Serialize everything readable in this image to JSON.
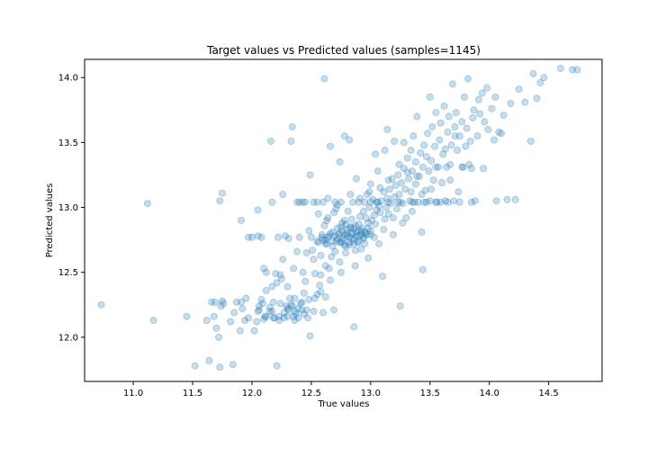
{
  "chart_data": {
    "type": "scatter",
    "title": "Target values vs Predicted values (samples=1145)",
    "xlabel": "True values",
    "ylabel": "Predicted values",
    "xlim": [
      10.59,
      14.95
    ],
    "ylim": [
      11.66,
      14.14
    ],
    "xticks": [
      11.0,
      11.5,
      12.0,
      12.5,
      13.0,
      13.5,
      14.0,
      14.5
    ],
    "yticks": [
      12.0,
      12.5,
      13.0,
      13.5,
      14.0
    ],
    "xtick_labels": [
      "11.0",
      "11.5",
      "12.0",
      "12.5",
      "13.0",
      "13.5",
      "14.0",
      "14.5"
    ],
    "ytick_labels": [
      "12.0",
      "12.5",
      "13.0",
      "13.5",
      "14.0"
    ],
    "grid": false,
    "marker_color": "#1f77b4",
    "marker_alpha": 0.25,
    "points": [
      [
        10.73,
        12.25
      ],
      [
        11.12,
        13.03
      ],
      [
        11.17,
        12.13
      ],
      [
        11.45,
        12.16
      ],
      [
        11.52,
        11.78
      ],
      [
        11.62,
        12.13
      ],
      [
        11.64,
        11.82
      ],
      [
        11.66,
        12.27
      ],
      [
        11.68,
        12.16
      ],
      [
        11.7,
        12.07
      ],
      [
        11.72,
        12.0
      ],
      [
        11.73,
        11.77
      ],
      [
        11.74,
        12.24
      ],
      [
        11.73,
        13.05
      ],
      [
        11.75,
        13.11
      ],
      [
        11.75,
        12.28
      ],
      [
        11.84,
        11.79
      ],
      [
        11.85,
        12.19
      ],
      [
        11.87,
        12.27
      ],
      [
        11.91,
        12.27
      ],
      [
        11.91,
        12.9
      ],
      [
        11.92,
        12.22
      ],
      [
        11.94,
        12.13
      ],
      [
        11.97,
        12.15
      ],
      [
        11.97,
        12.77
      ],
      [
        12.0,
        12.77
      ],
      [
        12.02,
        12.05
      ],
      [
        12.04,
        12.12
      ],
      [
        12.05,
        12.98
      ],
      [
        12.06,
        12.24
      ],
      [
        12.05,
        12.78
      ],
      [
        12.08,
        12.29
      ],
      [
        12.08,
        12.77
      ],
      [
        12.1,
        12.53
      ],
      [
        12.1,
        12.14
      ],
      [
        12.12,
        12.36
      ],
      [
        12.11,
        12.16
      ],
      [
        12.15,
        12.23
      ],
      [
        12.16,
        13.51
      ],
      [
        12.17,
        12.39
      ],
      [
        12.17,
        12.2
      ],
      [
        12.17,
        13.04
      ],
      [
        12.19,
        12.15
      ],
      [
        12.2,
        12.49
      ],
      [
        12.21,
        11.78
      ],
      [
        12.22,
        12.77
      ],
      [
        12.23,
        12.16
      ],
      [
        12.23,
        12.13
      ],
      [
        12.24,
        12.26
      ],
      [
        12.25,
        12.45
      ],
      [
        12.26,
        13.1
      ],
      [
        12.27,
        12.15
      ],
      [
        12.28,
        12.78
      ],
      [
        12.29,
        12.24
      ],
      [
        12.3,
        12.22
      ],
      [
        12.3,
        12.39
      ],
      [
        12.31,
        12.21
      ],
      [
        12.31,
        12.76
      ],
      [
        12.33,
        13.51
      ],
      [
        12.34,
        13.62
      ],
      [
        12.34,
        12.24
      ],
      [
        12.35,
        12.53
      ],
      [
        12.35,
        12.16
      ],
      [
        12.36,
        12.3
      ],
      [
        12.36,
        12.13
      ],
      [
        12.38,
        12.66
      ],
      [
        12.38,
        13.04
      ],
      [
        12.39,
        12.22
      ],
      [
        12.4,
        12.77
      ],
      [
        12.41,
        12.26
      ],
      [
        12.42,
        12.21
      ],
      [
        12.43,
        12.5
      ],
      [
        12.43,
        13.04
      ],
      [
        12.45,
        12.43
      ],
      [
        12.46,
        12.65
      ],
      [
        12.46,
        12.21
      ],
      [
        12.47,
        12.15
      ],
      [
        12.48,
        12.82
      ],
      [
        12.49,
        13.25
      ],
      [
        12.49,
        12.01
      ],
      [
        12.5,
        12.77
      ],
      [
        12.51,
        12.67
      ],
      [
        12.52,
        13.04
      ],
      [
        12.53,
        12.3
      ],
      [
        12.53,
        12.49
      ],
      [
        12.55,
        12.74
      ],
      [
        12.56,
        12.73
      ],
      [
        12.56,
        12.95
      ],
      [
        12.57,
        12.4
      ],
      [
        12.58,
        12.63
      ],
      [
        12.59,
        12.79
      ],
      [
        12.59,
        12.77
      ],
      [
        12.6,
        12.19
      ],
      [
        12.61,
        13.99
      ],
      [
        12.61,
        12.86
      ],
      [
        12.62,
        12.75
      ],
      [
        12.62,
        12.55
      ],
      [
        12.63,
        12.72
      ],
      [
        12.64,
        13.07
      ],
      [
        12.64,
        12.92
      ],
      [
        12.65,
        12.78
      ],
      [
        12.66,
        13.47
      ],
      [
        12.66,
        12.44
      ],
      [
        12.68,
        12.7
      ],
      [
        12.68,
        12.81
      ],
      [
        12.69,
        12.21
      ],
      [
        12.69,
        12.96
      ],
      [
        12.7,
        12.66
      ],
      [
        12.71,
        12.74
      ],
      [
        12.72,
        12.84
      ],
      [
        12.72,
        13.02
      ],
      [
        12.73,
        12.79
      ],
      [
        12.74,
        13.35
      ],
      [
        12.74,
        12.58
      ],
      [
        12.75,
        12.73
      ],
      [
        12.76,
        12.82
      ],
      [
        12.76,
        12.88
      ],
      [
        12.77,
        12.76
      ],
      [
        12.78,
        13.55
      ],
      [
        12.78,
        12.9
      ],
      [
        12.79,
        12.65
      ],
      [
        12.8,
        12.8
      ],
      [
        12.8,
        12.78
      ],
      [
        12.81,
        12.97
      ],
      [
        12.82,
        12.71
      ],
      [
        12.82,
        13.52
      ],
      [
        12.83,
        12.85
      ],
      [
        12.84,
        12.76
      ],
      [
        12.84,
        12.91
      ],
      [
        12.85,
        12.8
      ],
      [
        12.86,
        12.08
      ],
      [
        12.86,
        12.84
      ],
      [
        12.87,
        12.55
      ],
      [
        12.88,
        12.78
      ],
      [
        12.88,
        13.22
      ],
      [
        12.89,
        12.73
      ],
      [
        12.9,
        12.87
      ],
      [
        12.9,
        12.82
      ],
      [
        12.91,
        13.07
      ],
      [
        12.92,
        12.79
      ],
      [
        12.92,
        12.68
      ],
      [
        12.93,
        12.84
      ],
      [
        12.94,
        12.76
      ],
      [
        12.94,
        12.97
      ],
      [
        12.95,
        12.81
      ],
      [
        12.95,
        13.04
      ],
      [
        12.96,
        12.92
      ],
      [
        12.97,
        12.79
      ],
      [
        12.97,
        13.1
      ],
      [
        12.98,
        12.88
      ],
      [
        12.98,
        12.61
      ],
      [
        12.99,
        13.0
      ],
      [
        13.0,
        12.82
      ],
      [
        13.0,
        13.18
      ],
      [
        13.01,
        12.9
      ],
      [
        13.02,
        13.06
      ],
      [
        13.03,
        12.94
      ],
      [
        13.04,
        13.41
      ],
      [
        13.04,
        12.87
      ],
      [
        13.05,
        12.98
      ],
      [
        13.06,
        13.28
      ],
      [
        13.06,
        13.04
      ],
      [
        13.07,
        12.72
      ],
      [
        13.08,
        13.15
      ],
      [
        13.08,
        12.96
      ],
      [
        13.09,
        13.05
      ],
      [
        13.1,
        12.47
      ],
      [
        13.11,
        13.12
      ],
      [
        13.12,
        12.91
      ],
      [
        13.12,
        13.44
      ],
      [
        13.13,
        13.0
      ],
      [
        13.14,
        13.6
      ],
      [
        13.14,
        13.07
      ],
      [
        13.15,
        12.95
      ],
      [
        13.16,
        13.14
      ],
      [
        13.17,
        13.03
      ],
      [
        13.18,
        13.22
      ],
      [
        13.19,
        12.92
      ],
      [
        13.2,
        13.08
      ],
      [
        13.2,
        13.51
      ],
      [
        13.21,
        13.17
      ],
      [
        13.22,
        12.99
      ],
      [
        13.23,
        13.25
      ],
      [
        13.24,
        13.33
      ],
      [
        13.24,
        13.1
      ],
      [
        13.25,
        12.24
      ],
      [
        13.26,
        13.19
      ],
      [
        13.27,
        13.03
      ],
      [
        13.28,
        13.5
      ],
      [
        13.28,
        13.3
      ],
      [
        13.29,
        13.14
      ],
      [
        13.3,
        12.92
      ],
      [
        13.31,
        13.38
      ],
      [
        13.32,
        13.22
      ],
      [
        13.33,
        13.05
      ],
      [
        13.34,
        13.44
      ],
      [
        13.34,
        13.12
      ],
      [
        13.35,
        13.28
      ],
      [
        13.36,
        13.55
      ],
      [
        13.37,
        13.04
      ],
      [
        13.38,
        13.35
      ],
      [
        13.38,
        13.18
      ],
      [
        13.39,
        13.7
      ],
      [
        13.4,
        13.04
      ],
      [
        13.41,
        13.24
      ],
      [
        13.42,
        13.42
      ],
      [
        13.43,
        12.81
      ],
      [
        13.44,
        12.52
      ],
      [
        13.44,
        13.31
      ],
      [
        13.45,
        13.48
      ],
      [
        13.46,
        13.13
      ],
      [
        13.47,
        13.04
      ],
      [
        13.48,
        13.57
      ],
      [
        13.49,
        13.28
      ],
      [
        13.5,
        13.85
      ],
      [
        13.5,
        13.05
      ],
      [
        13.51,
        13.36
      ],
      [
        13.52,
        13.62
      ],
      [
        13.53,
        13.21
      ],
      [
        13.54,
        13.47
      ],
      [
        13.55,
        13.73
      ],
      [
        13.56,
        13.04
      ],
      [
        13.57,
        13.31
      ],
      [
        13.58,
        13.52
      ],
      [
        13.59,
        13.65
      ],
      [
        13.6,
        13.19
      ],
      [
        13.61,
        13.41
      ],
      [
        13.62,
        13.78
      ],
      [
        13.63,
        13.05
      ],
      [
        13.64,
        13.31
      ],
      [
        13.65,
        13.58
      ],
      [
        13.66,
        13.7
      ],
      [
        13.67,
        13.33
      ],
      [
        13.68,
        13.48
      ],
      [
        13.69,
        13.95
      ],
      [
        13.7,
        13.05
      ],
      [
        13.71,
        13.62
      ],
      [
        13.72,
        13.73
      ],
      [
        13.73,
        13.44
      ],
      [
        13.74,
        13.12
      ],
      [
        13.75,
        13.55
      ],
      [
        13.77,
        13.66
      ],
      [
        13.78,
        13.31
      ],
      [
        13.79,
        13.85
      ],
      [
        13.8,
        13.47
      ],
      [
        13.82,
        13.99
      ],
      [
        13.83,
        13.33
      ],
      [
        13.84,
        13.51
      ],
      [
        13.86,
        13.69
      ],
      [
        13.87,
        13.75
      ],
      [
        13.88,
        13.05
      ],
      [
        13.9,
        13.55
      ],
      [
        13.91,
        13.83
      ],
      [
        13.92,
        13.72
      ],
      [
        13.94,
        13.88
      ],
      [
        13.95,
        13.3
      ],
      [
        13.96,
        13.66
      ],
      [
        13.98,
        13.92
      ],
      [
        13.99,
        13.6
      ],
      [
        14.02,
        13.76
      ],
      [
        14.04,
        13.52
      ],
      [
        14.05,
        13.85
      ],
      [
        14.06,
        13.05
      ],
      [
        14.08,
        13.58
      ],
      [
        14.1,
        13.57
      ],
      [
        14.12,
        13.71
      ],
      [
        14.15,
        13.06
      ],
      [
        14.18,
        13.8
      ],
      [
        14.22,
        13.06
      ],
      [
        14.25,
        13.91
      ],
      [
        14.3,
        13.81
      ],
      [
        14.35,
        13.51
      ],
      [
        14.37,
        14.03
      ],
      [
        14.4,
        13.84
      ],
      [
        14.43,
        13.96
      ],
      [
        14.46,
        14.0
      ],
      [
        14.6,
        14.07
      ],
      [
        14.7,
        14.06
      ],
      [
        14.74,
        14.06
      ],
      [
        11.82,
        12.12
      ],
      [
        11.9,
        12.05
      ],
      [
        11.95,
        12.3
      ],
      [
        12.05,
        12.2
      ],
      [
        12.12,
        12.5
      ],
      [
        12.18,
        12.27
      ],
      [
        12.26,
        12.6
      ],
      [
        12.32,
        12.3
      ],
      [
        12.37,
        12.18
      ],
      [
        12.44,
        12.34
      ],
      [
        12.52,
        12.6
      ],
      [
        12.58,
        12.35
      ],
      [
        12.63,
        12.9
      ],
      [
        12.67,
        12.62
      ],
      [
        12.71,
        12.99
      ],
      [
        12.75,
        12.5
      ],
      [
        12.79,
        12.7
      ],
      [
        12.83,
        13.1
      ],
      [
        12.87,
        12.67
      ],
      [
        12.91,
        12.93
      ],
      [
        12.95,
        12.72
      ],
      [
        12.99,
        13.12
      ],
      [
        13.03,
        12.77
      ],
      [
        13.07,
        13.01
      ],
      [
        13.11,
        12.83
      ],
      [
        13.15,
        13.21
      ],
      [
        13.19,
        12.79
      ],
      [
        13.23,
        13.04
      ],
      [
        13.27,
        12.88
      ],
      [
        13.31,
        13.27
      ],
      [
        13.35,
        12.97
      ],
      [
        13.39,
        13.24
      ],
      [
        13.43,
        13.1
      ],
      [
        13.47,
        13.39
      ],
      [
        13.51,
        13.14
      ],
      [
        13.55,
        13.31
      ],
      [
        13.59,
        13.04
      ],
      [
        13.63,
        13.45
      ],
      [
        13.67,
        13.21
      ],
      [
        13.71,
        13.55
      ],
      [
        13.77,
        13.31
      ],
      [
        13.81,
        13.61
      ],
      [
        13.85,
        13.3
      ],
      [
        12.7,
        12.78
      ],
      [
        12.72,
        12.76
      ],
      [
        12.74,
        12.8
      ],
      [
        12.76,
        12.74
      ],
      [
        12.78,
        12.79
      ],
      [
        12.8,
        12.83
      ],
      [
        12.82,
        12.77
      ],
      [
        12.84,
        12.8
      ],
      [
        12.86,
        12.75
      ],
      [
        12.88,
        12.81
      ],
      [
        12.9,
        12.78
      ],
      [
        12.92,
        12.82
      ],
      [
        12.94,
        12.77
      ],
      [
        12.68,
        12.74
      ],
      [
        12.66,
        12.8
      ],
      [
        12.64,
        12.77
      ],
      [
        12.62,
        12.72
      ],
      [
        12.96,
        12.8
      ],
      [
        12.98,
        12.84
      ],
      [
        12.74,
        12.73
      ],
      [
        12.78,
        12.71
      ],
      [
        12.82,
        12.73
      ],
      [
        12.86,
        12.72
      ],
      [
        12.9,
        12.74
      ],
      [
        12.75,
        12.85
      ],
      [
        12.79,
        12.87
      ],
      [
        12.83,
        12.84
      ],
      [
        12.87,
        12.86
      ],
      [
        12.6,
        12.75
      ],
      [
        13.0,
        12.79
      ],
      [
        12.21,
        12.42
      ],
      [
        12.24,
        12.48
      ],
      [
        12.27,
        12.19
      ],
      [
        12.3,
        12.16
      ],
      [
        12.33,
        12.25
      ],
      [
        12.36,
        12.2
      ],
      [
        12.39,
        12.15
      ],
      [
        12.42,
        12.27
      ],
      [
        12.44,
        12.18
      ],
      [
        12.18,
        12.15
      ],
      [
        12.15,
        12.2
      ],
      [
        12.12,
        12.16
      ],
      [
        12.09,
        12.26
      ],
      [
        12.06,
        12.21
      ],
      [
        11.69,
        12.27
      ],
      [
        11.76,
        12.26
      ],
      [
        12.52,
        12.2
      ],
      [
        12.48,
        12.29
      ],
      [
        12.55,
        12.33
      ],
      [
        12.58,
        12.48
      ],
      [
        12.62,
        12.31
      ],
      [
        12.65,
        12.53
      ],
      [
        12.55,
        13.04
      ],
      [
        12.6,
        13.04
      ],
      [
        12.7,
        13.04
      ],
      [
        12.75,
        13.04
      ],
      [
        12.85,
        13.04
      ],
      [
        12.9,
        13.04
      ],
      [
        13.0,
        13.04
      ],
      [
        13.05,
        13.04
      ],
      [
        13.15,
        13.04
      ],
      [
        13.25,
        13.04
      ],
      [
        13.35,
        13.04
      ],
      [
        13.45,
        13.04
      ],
      [
        13.55,
        13.04
      ],
      [
        13.65,
        13.04
      ],
      [
        13.75,
        13.04
      ],
      [
        13.85,
        13.04
      ],
      [
        12.45,
        13.04
      ],
      [
        12.4,
        13.04
      ]
    ]
  }
}
